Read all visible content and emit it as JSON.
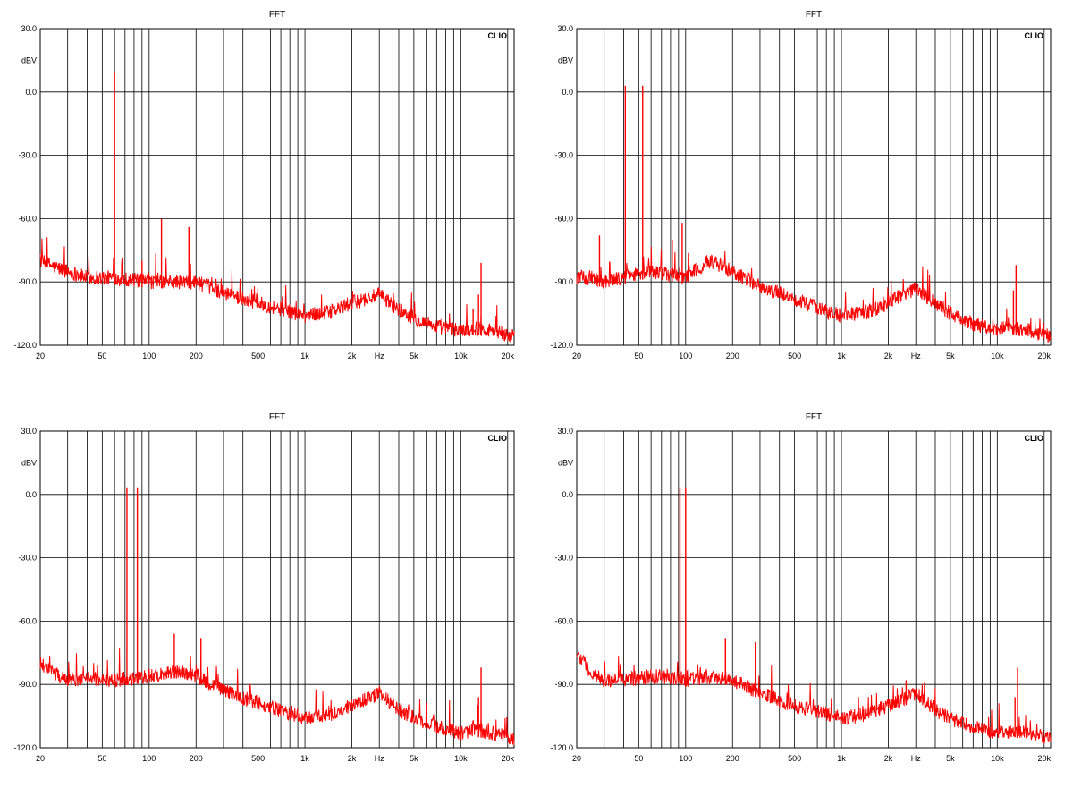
{
  "chart_data": [
    {
      "type": "line",
      "title": "FFT",
      "brand": "CLIO",
      "ylabel": "dBV",
      "xlabel": "Hz",
      "xscale": "log",
      "xlim": [
        20,
        22000
      ],
      "ylim": [
        -120,
        30
      ],
      "grid": true,
      "yticks": [
        30,
        0,
        -30,
        -60,
        -90,
        -120
      ],
      "ytick_labels": [
        "30.0",
        "0.0",
        "-30.0",
        "-60.0",
        "-90.0",
        "-120.0"
      ],
      "xtick_labels": [
        {
          "label": "20",
          "value": 20
        },
        {
          "label": "50",
          "value": 50
        },
        {
          "label": "100",
          "value": 100
        },
        {
          "label": "200",
          "value": 200
        },
        {
          "label": "500",
          "value": 500
        },
        {
          "label": "1k",
          "value": 1000
        },
        {
          "label": "2k",
          "value": 2000
        },
        {
          "label": "Hz",
          "value": 3000
        },
        {
          "label": "5k",
          "value": 5000
        },
        {
          "label": "10k",
          "value": 10000
        },
        {
          "label": "20k",
          "value": 20000
        }
      ],
      "series_color": "#ff0000",
      "baseline": [
        [
          20,
          -80
        ],
        [
          25,
          -83
        ],
        [
          30,
          -85
        ],
        [
          40,
          -88
        ],
        [
          60,
          -88
        ],
        [
          100,
          -90
        ],
        [
          150,
          -90
        ],
        [
          200,
          -90
        ],
        [
          300,
          -95
        ],
        [
          500,
          -100
        ],
        [
          800,
          -104
        ],
        [
          1000,
          -106
        ],
        [
          1500,
          -104
        ],
        [
          2000,
          -100
        ],
        [
          2500,
          -98
        ],
        [
          3000,
          -96
        ],
        [
          4000,
          -103
        ],
        [
          5000,
          -107
        ],
        [
          7000,
          -111
        ],
        [
          10000,
          -113
        ],
        [
          13000,
          -112
        ],
        [
          16000,
          -113
        ],
        [
          22000,
          -116
        ]
      ],
      "peaks": [
        {
          "x": 60,
          "y": 9
        },
        {
          "x": 120,
          "y": -60
        },
        {
          "x": 180,
          "y": -64
        },
        {
          "x": 90,
          "y": -80
        },
        {
          "x": 13500,
          "y": -81
        },
        {
          "x": 13000,
          "y": -96
        },
        {
          "x": 12000,
          "y": -103
        }
      ]
    },
    {
      "type": "line",
      "title": "FFT",
      "brand": "CLIO",
      "ylabel": "dBV",
      "xlabel": "Hz",
      "xscale": "log",
      "xlim": [
        20,
        22000
      ],
      "ylim": [
        -120,
        30
      ],
      "grid": true,
      "yticks": [
        30,
        0,
        -30,
        -60,
        -90,
        -120
      ],
      "ytick_labels": [
        "30.0",
        "0.0",
        "-30.0",
        "-60.0",
        "-90.0",
        "-120.0"
      ],
      "xtick_labels": [
        {
          "label": "20",
          "value": 20
        },
        {
          "label": "50",
          "value": 50
        },
        {
          "label": "100",
          "value": 100
        },
        {
          "label": "200",
          "value": 200
        },
        {
          "label": "500",
          "value": 500
        },
        {
          "label": "1k",
          "value": 1000
        },
        {
          "label": "2k",
          "value": 2000
        },
        {
          "label": "Hz",
          "value": 3000
        },
        {
          "label": "5k",
          "value": 5000
        },
        {
          "label": "10k",
          "value": 10000
        },
        {
          "label": "20k",
          "value": 20000
        }
      ],
      "series_color": "#ff0000",
      "baseline": [
        [
          20,
          -88
        ],
        [
          25,
          -88
        ],
        [
          30,
          -90
        ],
        [
          40,
          -88
        ],
        [
          60,
          -85
        ],
        [
          100,
          -88
        ],
        [
          140,
          -80
        ],
        [
          200,
          -85
        ],
        [
          300,
          -92
        ],
        [
          500,
          -98
        ],
        [
          800,
          -104
        ],
        [
          1000,
          -106
        ],
        [
          1500,
          -104
        ],
        [
          2000,
          -100
        ],
        [
          2500,
          -96
        ],
        [
          3000,
          -93
        ],
        [
          4000,
          -100
        ],
        [
          5000,
          -105
        ],
        [
          7000,
          -110
        ],
        [
          10000,
          -112
        ],
        [
          13000,
          -112
        ],
        [
          16000,
          -113
        ],
        [
          22000,
          -116
        ]
      ],
      "peaks": [
        {
          "x": 41,
          "y": 3
        },
        {
          "x": 53,
          "y": 3
        },
        {
          "x": 28,
          "y": -68
        },
        {
          "x": 95,
          "y": -62
        },
        {
          "x": 82,
          "y": -70
        },
        {
          "x": 13200,
          "y": -82
        },
        {
          "x": 12700,
          "y": -94
        }
      ]
    },
    {
      "type": "line",
      "title": "FFT",
      "brand": "CLIO",
      "ylabel": "dBV",
      "xlabel": "Hz",
      "xscale": "log",
      "xlim": [
        20,
        22000
      ],
      "ylim": [
        -120,
        30
      ],
      "grid": true,
      "yticks": [
        30,
        0,
        -30,
        -60,
        -90,
        -120
      ],
      "ytick_labels": [
        "30.0",
        "0.0",
        "-30.0",
        "-60.0",
        "-90.0",
        "-120.0"
      ],
      "xtick_labels": [
        {
          "label": "20",
          "value": 20
        },
        {
          "label": "50",
          "value": 50
        },
        {
          "label": "100",
          "value": 100
        },
        {
          "label": "200",
          "value": 200
        },
        {
          "label": "500",
          "value": 500
        },
        {
          "label": "1k",
          "value": 1000
        },
        {
          "label": "2k",
          "value": 2000
        },
        {
          "label": "Hz",
          "value": 3000
        },
        {
          "label": "5k",
          "value": 5000
        },
        {
          "label": "10k",
          "value": 10000
        },
        {
          "label": "20k",
          "value": 20000
        }
      ],
      "series_color": "#ff0000",
      "baseline": [
        [
          20,
          -80
        ],
        [
          25,
          -85
        ],
        [
          30,
          -88
        ],
        [
          40,
          -87
        ],
        [
          60,
          -88
        ],
        [
          100,
          -86
        ],
        [
          150,
          -84
        ],
        [
          200,
          -86
        ],
        [
          300,
          -93
        ],
        [
          500,
          -99
        ],
        [
          800,
          -104
        ],
        [
          1000,
          -106
        ],
        [
          1500,
          -104
        ],
        [
          2000,
          -100
        ],
        [
          2500,
          -97
        ],
        [
          3000,
          -94
        ],
        [
          4000,
          -102
        ],
        [
          5000,
          -106
        ],
        [
          7000,
          -110
        ],
        [
          10000,
          -113
        ],
        [
          13000,
          -112
        ],
        [
          16000,
          -113
        ],
        [
          22000,
          -116
        ]
      ],
      "peaks": [
        {
          "x": 72,
          "y": 3
        },
        {
          "x": 84,
          "y": 3
        },
        {
          "x": 145,
          "y": -66
        },
        {
          "x": 215,
          "y": -68
        },
        {
          "x": 13500,
          "y": -82
        },
        {
          "x": 13000,
          "y": -96
        }
      ]
    },
    {
      "type": "line",
      "title": "FFT",
      "brand": "CLIO",
      "ylabel": "dBV",
      "xlabel": "Hz",
      "xscale": "log",
      "xlim": [
        20,
        22000
      ],
      "ylim": [
        -120,
        30
      ],
      "grid": true,
      "yticks": [
        30,
        0,
        -30,
        -60,
        -90,
        -120
      ],
      "ytick_labels": [
        "30.0",
        "0.0",
        "-30.0",
        "-60.0",
        "-90.0",
        "-120.0"
      ],
      "xtick_labels": [
        {
          "label": "20",
          "value": 20
        },
        {
          "label": "50",
          "value": 50
        },
        {
          "label": "100",
          "value": 100
        },
        {
          "label": "200",
          "value": 200
        },
        {
          "label": "500",
          "value": 500
        },
        {
          "label": "1k",
          "value": 1000
        },
        {
          "label": "2k",
          "value": 2000
        },
        {
          "label": "Hz",
          "value": 3000
        },
        {
          "label": "5k",
          "value": 5000
        },
        {
          "label": "10k",
          "value": 10000
        },
        {
          "label": "20k",
          "value": 20000
        }
      ],
      "series_color": "#ff0000",
      "baseline": [
        [
          20,
          -75
        ],
        [
          25,
          -85
        ],
        [
          30,
          -88
        ],
        [
          40,
          -88
        ],
        [
          60,
          -86
        ],
        [
          100,
          -88
        ],
        [
          150,
          -86
        ],
        [
          200,
          -88
        ],
        [
          300,
          -94
        ],
        [
          500,
          -100
        ],
        [
          800,
          -104
        ],
        [
          1000,
          -106
        ],
        [
          1500,
          -104
        ],
        [
          2000,
          -100
        ],
        [
          2500,
          -97
        ],
        [
          3000,
          -94
        ],
        [
          4000,
          -102
        ],
        [
          5000,
          -106
        ],
        [
          7000,
          -110
        ],
        [
          10000,
          -113
        ],
        [
          13000,
          -112
        ],
        [
          16000,
          -113
        ],
        [
          22000,
          -116
        ]
      ],
      "peaks": [
        {
          "x": 92,
          "y": 3
        },
        {
          "x": 100,
          "y": 3
        },
        {
          "x": 180,
          "y": -68
        },
        {
          "x": 280,
          "y": -70
        },
        {
          "x": 13500,
          "y": -82
        },
        {
          "x": 13000,
          "y": -96
        },
        {
          "x": 2600,
          "y": -88
        }
      ]
    }
  ]
}
